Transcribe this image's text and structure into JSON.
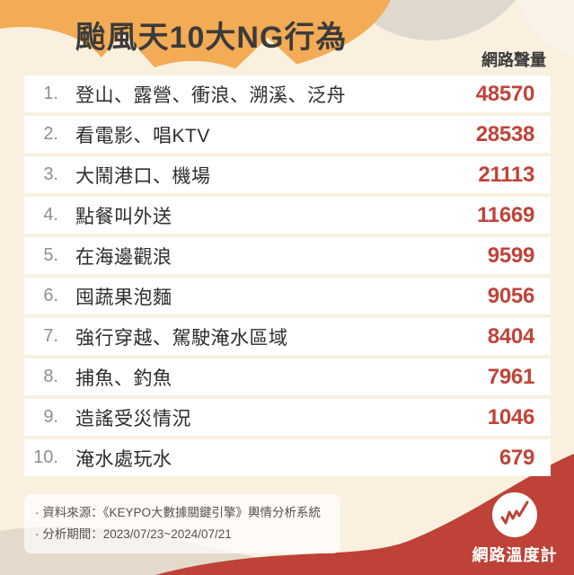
{
  "header": {
    "title": "颱風天10大NG行為",
    "column_label": "網路聲量"
  },
  "chart_data": {
    "type": "table",
    "title": "颱風天10大NG行為",
    "value_column": "網路聲量",
    "categories": [
      "登山、露營、衝浪、溯溪、泛舟",
      "看電影、唱KTV",
      "大鬧港口、機場",
      "點餐叫外送",
      "在海邊觀浪",
      "囤蔬果泡麵",
      "強行穿越、駕駛淹水區域",
      "捕魚、釣魚",
      "造謠受災情況",
      "淹水處玩水"
    ],
    "values": [
      48570,
      28538,
      21113,
      11669,
      9599,
      9056,
      8404,
      7961,
      1046,
      679
    ]
  },
  "rows": [
    {
      "rank": "1.",
      "label": "登山、露營、衝浪、溯溪、泛舟",
      "value": "48570"
    },
    {
      "rank": "2.",
      "label": "看電影、唱KTV",
      "value": "28538"
    },
    {
      "rank": "3.",
      "label": "大鬧港口、機場",
      "value": "21113"
    },
    {
      "rank": "4.",
      "label": "點餐叫外送",
      "value": "11669"
    },
    {
      "rank": "5.",
      "label": "在海邊觀浪",
      "value": "9599"
    },
    {
      "rank": "6.",
      "label": "囤蔬果泡麵",
      "value": "9056"
    },
    {
      "rank": "7.",
      "label": "強行穿越、駕駛淹水區域",
      "value": "8404"
    },
    {
      "rank": "8.",
      "label": "捕魚、釣魚",
      "value": "7961"
    },
    {
      "rank": "9.",
      "label": "造謠受災情況",
      "value": "1046"
    },
    {
      "rank": "10.",
      "label": "淹水處玩水",
      "value": "679"
    }
  ],
  "footer": {
    "source_line": "· 資料來源：《KEYPO大數據關鍵引擎》輿情分析系統",
    "period_line": "· 分析期間：2023/07/23~2024/07/21",
    "brand": "網路溫度計"
  },
  "colors": {
    "background_cream": "#FAF0DF",
    "header_orange": "#F3AB55",
    "header_gray": "#DED8CF",
    "hill_beige": "#E3DACC",
    "wave_red": "#BE4237",
    "value_red": "#C04339",
    "text_dark": "#2D2D2D",
    "rank_gray": "#8F8F8F"
  }
}
